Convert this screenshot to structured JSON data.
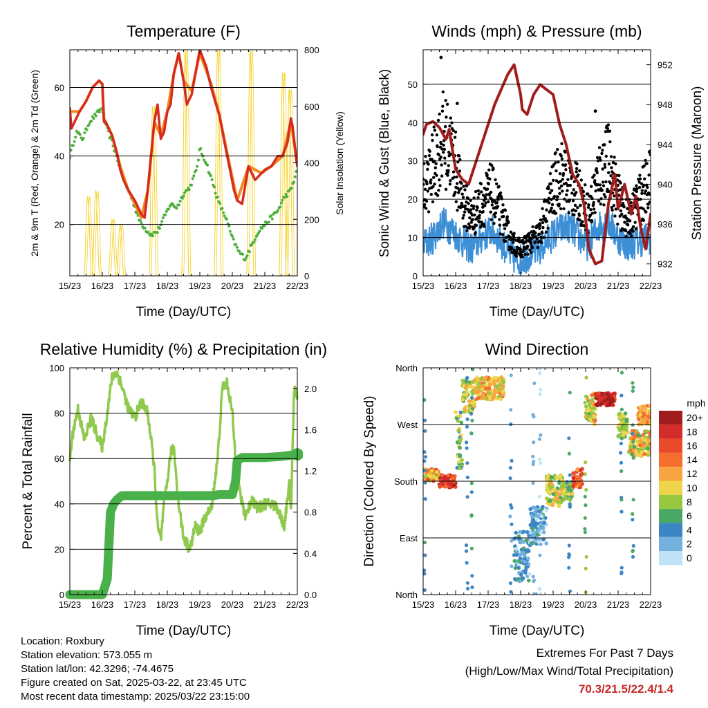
{
  "chart_data": [
    {
      "type": "line",
      "title": "Temperature (F)",
      "xlabel": "Time (Day/UTC)",
      "ylabel": "2m & 9m T (Red, Orange) & 2m Td (Green)",
      "y2label": "Solar Insolation (Yellow)",
      "x_ticks": [
        "15/23",
        "16/23",
        "17/23",
        "18/23",
        "19/23",
        "20/23",
        "21/23",
        "22/23"
      ],
      "xlim": [
        0,
        7
      ],
      "ylim": [
        5,
        71
      ],
      "y_ticks": [
        20,
        40,
        60
      ],
      "y2lim": [
        0,
        800
      ],
      "y2_ticks": [
        0,
        200,
        400,
        600,
        800
      ],
      "grid": "horizontal",
      "series": [
        {
          "color": "#d62b1f",
          "axis": "left",
          "x": [
            0,
            0.05,
            0.15,
            0.3,
            0.5,
            0.7,
            0.9,
            1.0,
            1.05,
            1.1,
            1.3,
            1.45,
            1.55,
            1.65,
            1.8,
            2.0,
            2.2,
            2.3,
            2.4,
            2.5,
            2.6,
            2.7,
            2.8,
            2.9,
            3.0,
            3.1,
            3.2,
            3.35,
            3.5,
            3.6,
            3.75,
            3.9,
            4.0,
            4.2,
            4.35,
            4.5,
            4.6,
            4.7,
            4.8,
            4.95,
            5.05,
            5.15,
            5.3,
            5.5,
            5.7,
            5.9,
            6.0,
            6.2,
            6.4,
            6.55,
            6.7,
            6.8,
            6.85,
            6.9,
            6.95,
            7.0
          ],
          "y": [
            54,
            48,
            50,
            53,
            56,
            60,
            62,
            61,
            50,
            50,
            46,
            41,
            36,
            33,
            30,
            27,
            23,
            22,
            30,
            40,
            50,
            55,
            45,
            47,
            53,
            55,
            64,
            70,
            62,
            55,
            58,
            66,
            71,
            66,
            60,
            55,
            52,
            47,
            42,
            35,
            30,
            27,
            26,
            37,
            33,
            35,
            36,
            37,
            40,
            40,
            44,
            51,
            49,
            45,
            40,
            37
          ]
        },
        {
          "color": "#f28a1d",
          "axis": "left",
          "x": [
            0,
            0.3,
            0.5,
            0.7,
            0.9,
            1.0,
            1.05,
            1.3,
            1.55,
            1.8,
            2.2,
            2.4,
            2.6,
            2.8,
            3.0,
            3.2,
            3.35,
            3.5,
            3.75,
            4.0,
            4.35,
            4.6,
            4.95,
            5.15,
            5.5,
            5.9,
            6.2,
            6.55,
            6.8,
            7.0
          ],
          "y": [
            53,
            53,
            56,
            60,
            62,
            61,
            51,
            46,
            37,
            30,
            22,
            30,
            50,
            46,
            53,
            64,
            70,
            62,
            59,
            70,
            61,
            52,
            36,
            27,
            37,
            35,
            37,
            40,
            50,
            38
          ]
        },
        {
          "color": "#4daf3a",
          "axis": "left",
          "x": [
            0,
            0.2,
            0.4,
            0.6,
            0.8,
            1.0,
            1.1,
            1.3,
            1.5,
            1.7,
            1.9,
            2.1,
            2.3,
            2.5,
            2.7,
            2.9,
            3.1,
            3.3,
            3.5,
            3.7,
            3.9,
            4.0,
            4.2,
            4.4,
            4.6,
            4.8,
            5.0,
            5.2,
            5.4,
            5.6,
            5.8,
            6.0,
            6.2,
            6.4,
            6.6,
            6.8,
            7.0
          ],
          "y": [
            40,
            47,
            45,
            50,
            52,
            54,
            49,
            44,
            38,
            32,
            28,
            22,
            19,
            17,
            18,
            22,
            26,
            25,
            29,
            31,
            36,
            42,
            38,
            32,
            26,
            22,
            16,
            12,
            10,
            14,
            18,
            20,
            22,
            24,
            28,
            30,
            36
          ]
        },
        {
          "color": "#f5d020",
          "axis": "right",
          "pulses": [
            [
              0.55,
              280
            ],
            [
              0.8,
              300
            ],
            [
              1.3,
              200
            ],
            [
              1.55,
              180
            ],
            [
              2.55,
              600
            ],
            [
              3.55,
              800
            ],
            [
              4.55,
              800
            ],
            [
              5.55,
              800
            ],
            [
              6.55,
              720
            ],
            [
              6.75,
              660
            ]
          ]
        }
      ]
    },
    {
      "type": "scatter",
      "title": "Winds (mph) & Pressure (mb)",
      "xlabel": "Time (Day/UTC)",
      "ylabel": "Sonic Wind & Gust (Blue, Black)",
      "y2label": "Station Pressure (Maroon)",
      "x_ticks": [
        "15/23",
        "16/23",
        "17/23",
        "18/23",
        "19/23",
        "20/23",
        "21/23",
        "22/23"
      ],
      "xlim": [
        0,
        7
      ],
      "ylim": [
        0,
        59
      ],
      "y_ticks": [
        0,
        10,
        20,
        30,
        40,
        50
      ],
      "y2lim": [
        930.8,
        953.5
      ],
      "y2_ticks": [
        932,
        936,
        940,
        944,
        948,
        952
      ],
      "grid": "horizontal",
      "series": [
        {
          "color": "#3d8fd6",
          "axis": "left",
          "x": [
            0,
            0.3,
            0.6,
            0.9,
            1.2,
            1.5,
            1.8,
            2.1,
            2.4,
            2.7,
            3.0,
            3.3,
            3.6,
            3.9,
            4.2,
            4.5,
            4.8,
            5.1,
            5.4,
            5.7,
            6.0,
            6.3,
            6.6,
            7.0
          ],
          "y": [
            8,
            10,
            14,
            12,
            9,
            7,
            10,
            12,
            9,
            5,
            4,
            6,
            7,
            10,
            12,
            13,
            10,
            8,
            13,
            14,
            10,
            8,
            9,
            10
          ]
        },
        {
          "color": "#000000",
          "axis": "left",
          "x": [
            0,
            0.3,
            0.6,
            0.9,
            1.2,
            1.5,
            1.8,
            2.1,
            2.4,
            2.7,
            3.0,
            3.3,
            3.6,
            3.9,
            4.2,
            4.5,
            4.8,
            5.1,
            5.4,
            5.7,
            6.0,
            6.3,
            6.6,
            7.0
          ],
          "y": [
            22,
            28,
            36,
            32,
            20,
            15,
            19,
            22,
            16,
            9,
            7,
            9,
            11,
            20,
            27,
            24,
            21,
            16,
            26,
            30,
            20,
            14,
            19,
            25
          ]
        },
        {
          "color": "#a11d1d",
          "axis": "right",
          "x": [
            0,
            0.1,
            0.3,
            0.5,
            0.7,
            0.8,
            1.0,
            1.2,
            1.4,
            1.6,
            1.8,
            2.0,
            2.2,
            2.4,
            2.6,
            2.8,
            3.0,
            3.05,
            3.2,
            3.4,
            3.6,
            3.8,
            4.0,
            4.2,
            4.4,
            4.6,
            4.8,
            4.95,
            5.1,
            5.3,
            5.5,
            5.7,
            5.9,
            6.0,
            6.2,
            6.4,
            6.55,
            6.7,
            6.85,
            7.0
          ],
          "y": [
            945,
            946,
            946.3,
            945.7,
            944.5,
            945.5,
            941.5,
            940.5,
            940,
            942,
            944,
            946,
            948,
            949.5,
            951,
            952,
            949,
            947.5,
            947,
            949,
            950,
            949.5,
            949,
            946,
            944,
            941,
            940,
            938,
            933.5,
            932,
            932.3,
            938,
            941,
            937.5,
            940,
            937,
            938.8,
            935.5,
            933.5,
            937
          ]
        }
      ]
    },
    {
      "type": "line",
      "title": "Relative Humidity (%) & Precipitation (in)",
      "xlabel": "Time (Day/UTC)",
      "ylabel": "Percent & Total Rainfall",
      "x_ticks": [
        "15/23",
        "16/23",
        "17/23",
        "18/23",
        "19/23",
        "20/23",
        "21/23",
        "22/23"
      ],
      "xlim": [
        0,
        7
      ],
      "ylim": [
        0,
        100
      ],
      "y_ticks": [
        0,
        20,
        40,
        60,
        80,
        100
      ],
      "y2lim": [
        0,
        2.2
      ],
      "y2_ticks": [
        "0.0",
        "0.4",
        "0.8",
        "1.2",
        "1.6",
        "2.0"
      ],
      "grid": "horizontal",
      "series": [
        {
          "color": "#8fca4f",
          "axis": "left",
          "x": [
            0,
            0.1,
            0.25,
            0.45,
            0.65,
            0.85,
            1.0,
            1.15,
            1.3,
            1.45,
            1.6,
            1.8,
            2.0,
            2.2,
            2.4,
            2.6,
            2.7,
            2.8,
            2.9,
            3.0,
            3.1,
            3.2,
            3.35,
            3.5,
            3.7,
            3.85,
            4.0,
            4.2,
            4.35,
            4.55,
            4.7,
            4.85,
            5.0,
            5.1,
            5.2,
            5.3,
            5.4,
            5.5,
            5.6,
            5.8,
            6.0,
            6.2,
            6.4,
            6.6,
            6.75,
            6.8,
            6.9,
            7.0
          ],
          "y": [
            60,
            72,
            82,
            68,
            78,
            70,
            65,
            80,
            96,
            98,
            92,
            82,
            78,
            85,
            80,
            56,
            30,
            24,
            40,
            50,
            62,
            65,
            40,
            25,
            20,
            30,
            28,
            35,
            38,
            60,
            92,
            93,
            80,
            60,
            48,
            40,
            35,
            38,
            42,
            38,
            40,
            40,
            38,
            30,
            50,
            35,
            90,
            88
          ]
        },
        {
          "color": "#4ab04a",
          "axis": "right",
          "x": [
            0,
            0.5,
            1.0,
            1.15,
            1.25,
            1.35,
            1.45,
            1.6,
            2.0,
            2.5,
            3.0,
            3.5,
            4.0,
            4.4,
            4.6,
            5.0,
            5.1,
            5.15,
            5.3,
            5.6,
            6.0,
            6.5,
            7.0
          ],
          "y": [
            0,
            0,
            0,
            0.15,
            0.8,
            0.88,
            0.92,
            0.96,
            0.96,
            0.96,
            0.96,
            0.96,
            0.96,
            0.96,
            0.97,
            0.97,
            1.1,
            1.3,
            1.33,
            1.33,
            1.33,
            1.34,
            1.36
          ]
        }
      ]
    },
    {
      "type": "scatter",
      "title": "Wind Direction",
      "xlabel": "Time (Day/UTC)",
      "ylabel": "Direction (Colored By Speed)",
      "x_ticks": [
        "15/23",
        "16/23",
        "17/23",
        "18/23",
        "19/23",
        "20/23",
        "21/23",
        "22/23"
      ],
      "xlim": [
        0,
        7
      ],
      "y_ticks": [
        "North",
        "East",
        "South",
        "West",
        "North"
      ],
      "ylim": [
        0,
        360
      ],
      "grid": "horizontal",
      "legend_title": "mph",
      "legend_labels": [
        "20+",
        "18",
        "16",
        "14",
        "12",
        "10",
        "8",
        "6",
        "4",
        "2",
        "0"
      ],
      "legend_colors": [
        "#a11d1d",
        "#d42b2b",
        "#e84a2a",
        "#f46e2e",
        "#f8a440",
        "#eed44a",
        "#98c83f",
        "#4aa865",
        "#3c86c5",
        "#74b0de",
        "#bfe3f5"
      ],
      "clusters": [
        {
          "x": [
            0.05,
            0.5
          ],
          "y": [
            180,
            200
          ],
          "speed": [
            8,
            16
          ]
        },
        {
          "x": [
            0.5,
            1.0
          ],
          "y": [
            170,
            190
          ],
          "speed": [
            14,
            20
          ]
        },
        {
          "x": [
            1.0,
            1.2
          ],
          "y": [
            200,
            290
          ],
          "speed": [
            4,
            10
          ]
        },
        {
          "x": [
            1.2,
            1.6
          ],
          "y": [
            290,
            340
          ],
          "speed": [
            6,
            12
          ]
        },
        {
          "x": [
            1.6,
            2.5
          ],
          "y": [
            310,
            345
          ],
          "speed": [
            8,
            14
          ]
        },
        {
          "x": [
            2.8,
            3.3
          ],
          "y": [
            20,
            100
          ],
          "speed": [
            0,
            6
          ]
        },
        {
          "x": [
            3.3,
            3.8
          ],
          "y": [
            80,
            140
          ],
          "speed": [
            0,
            6
          ]
        },
        {
          "x": [
            3.8,
            4.3
          ],
          "y": [
            140,
            190
          ],
          "speed": [
            6,
            12
          ]
        },
        {
          "x": [
            4.3,
            4.6
          ],
          "y": [
            150,
            180
          ],
          "speed": [
            4,
            10
          ]
        },
        {
          "x": [
            4.6,
            4.9
          ],
          "y": [
            170,
            200
          ],
          "speed": [
            12,
            18
          ]
        },
        {
          "x": [
            5.0,
            5.3
          ],
          "y": [
            270,
            320
          ],
          "speed": [
            6,
            14
          ]
        },
        {
          "x": [
            5.3,
            5.9
          ],
          "y": [
            300,
            320
          ],
          "speed": [
            16,
            22
          ]
        },
        {
          "x": [
            6.0,
            6.3
          ],
          "y": [
            250,
            290
          ],
          "speed": [
            6,
            10
          ]
        },
        {
          "x": [
            6.3,
            7.0
          ],
          "y": [
            220,
            260
          ],
          "speed": [
            6,
            14
          ]
        },
        {
          "x": [
            6.6,
            7.0
          ],
          "y": [
            270,
            300
          ],
          "speed": [
            10,
            14
          ]
        }
      ]
    }
  ],
  "info": {
    "location": "Location: Roxbury",
    "elevation": "Station elevation: 573.055 m",
    "latlon": "Station lat/lon: 42.3296; -74.4675",
    "created": "Figure created on Sat, 2025-03-22, at 23:45 UTC",
    "recent": "Most recent data timestamp: 2025/03/22 23:15:00"
  },
  "extremes": {
    "title": "Extremes For Past 7 Days",
    "subtitle": "(High/Low/Max Wind/Total Precipitation)",
    "values": "70.3/21.5/22.4/1.4",
    "value_color": "#c62828"
  }
}
